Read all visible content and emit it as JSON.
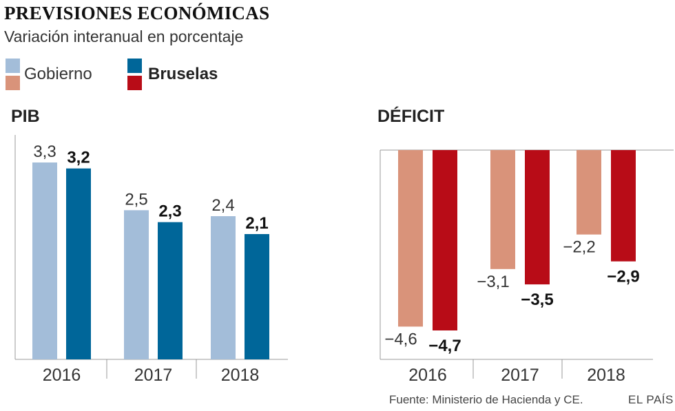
{
  "header": {
    "title": "PREVISIONES ECONÓMICAS",
    "subtitle": "Variación interanual en porcentaje"
  },
  "legend": {
    "gobierno_label": "Gobierno",
    "bruselas_label": "Bruselas",
    "colors": {
      "gobierno_pib": "#a3bdd9",
      "bruselas_pib": "#006699",
      "gobierno_deficit": "#d9937a",
      "bruselas_deficit": "#b80c17"
    }
  },
  "chart_data": [
    {
      "type": "bar",
      "title": "PIB",
      "categories": [
        "2016",
        "2017",
        "2018"
      ],
      "series": [
        {
          "name": "Gobierno",
          "values": [
            3.3,
            2.5,
            2.4
          ],
          "labels": [
            "3,3",
            "2,5",
            "2,4"
          ],
          "color": "#a3bdd9"
        },
        {
          "name": "Bruselas",
          "values": [
            3.2,
            2.3,
            2.1
          ],
          "labels": [
            "3,2",
            "2,3",
            "2,1"
          ],
          "color": "#006699"
        }
      ],
      "ylim": [
        0,
        3.3
      ],
      "grid": false
    },
    {
      "type": "bar",
      "title": "DÉFICIT",
      "categories": [
        "2016",
        "2017",
        "2018"
      ],
      "series": [
        {
          "name": "Gobierno",
          "values": [
            -4.6,
            -3.1,
            -2.2
          ],
          "labels": [
            "−4,6",
            "−3,1",
            "−2,2"
          ],
          "color": "#d9937a"
        },
        {
          "name": "Bruselas",
          "values": [
            -4.7,
            -3.5,
            -2.9
          ],
          "labels": [
            "−4,7",
            "−3,5",
            "−2,9"
          ],
          "color": "#b80c17"
        }
      ],
      "ylim": [
        -4.7,
        0
      ],
      "grid": false
    }
  ],
  "footer": {
    "source": "Fuente: Ministerio de Hacienda y CE.",
    "brand": "EL PAÍS"
  }
}
